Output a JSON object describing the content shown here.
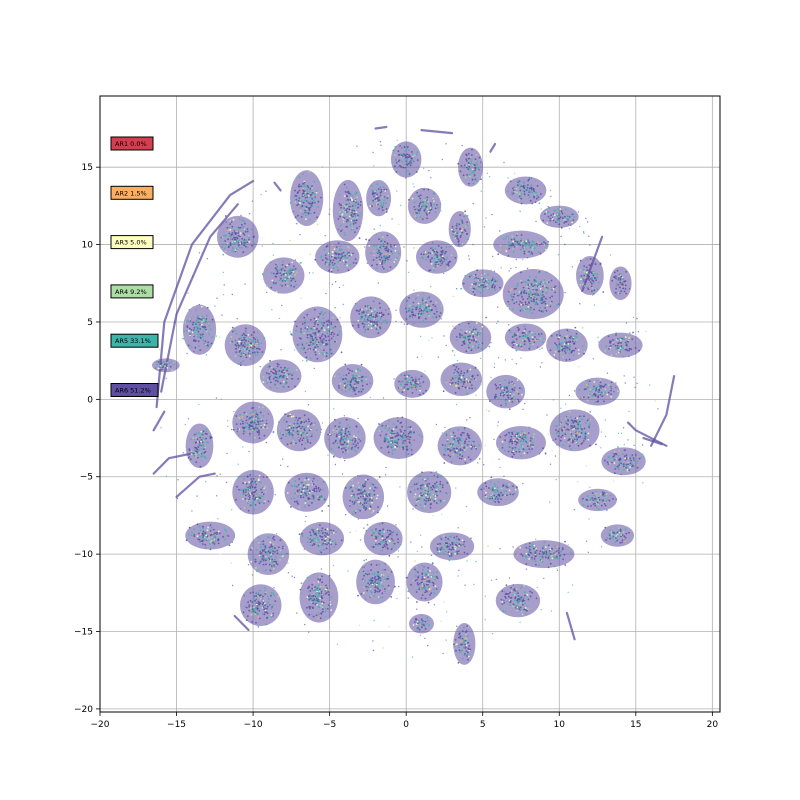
{
  "chart_data": {
    "type": "scatter",
    "title": "",
    "xlabel": "",
    "ylabel": "",
    "xlim": [
      -20,
      20.5
    ],
    "ylim": [
      -20.2,
      19.6
    ],
    "grid": true,
    "legend_placement": "upper-left",
    "xticks": [
      -20,
      -15,
      -10,
      -5,
      0,
      5,
      10,
      15,
      20
    ],
    "yticks": [
      -20,
      -15,
      -10,
      -5,
      0,
      5,
      10,
      15
    ],
    "point_color_primary": "#5e4fa2",
    "series": [
      {
        "name": "AR1",
        "label": "AR1 0.0%",
        "percent": 0.0,
        "color": "#d53e4f"
      },
      {
        "name": "AR2",
        "label": "AR2 1.5%",
        "percent": 1.5,
        "color": "#fdae61"
      },
      {
        "name": "AR3",
        "label": "AR3 5.0%",
        "percent": 5.0,
        "color": "#ffffbf"
      },
      {
        "name": "AR4",
        "label": "AR4 9.2%",
        "percent": 9.2,
        "color": "#abdda4"
      },
      {
        "name": "AR5",
        "label": "AR5 33.1%",
        "percent": 33.1,
        "color": "#3eb3a8"
      },
      {
        "name": "AR6",
        "label": "AR6 51.2%",
        "percent": 51.2,
        "color": "#5e4fa2"
      }
    ],
    "clusters": [
      {
        "x": 0.0,
        "y": 15.5,
        "rx": 1.1,
        "ry": 1.3
      },
      {
        "x": 4.2,
        "y": 15.0,
        "rx": 0.9,
        "ry": 1.4
      },
      {
        "x": -6.5,
        "y": 13.0,
        "rx": 1.2,
        "ry": 2.0
      },
      {
        "x": -3.8,
        "y": 12.2,
        "rx": 1.1,
        "ry": 2.2
      },
      {
        "x": -1.8,
        "y": 13.0,
        "rx": 0.9,
        "ry": 1.3
      },
      {
        "x": 1.2,
        "y": 12.5,
        "rx": 1.2,
        "ry": 1.3
      },
      {
        "x": 3.5,
        "y": 11.0,
        "rx": 0.8,
        "ry": 1.3
      },
      {
        "x": 7.8,
        "y": 13.5,
        "rx": 1.5,
        "ry": 1.0
      },
      {
        "x": 10.0,
        "y": 11.8,
        "rx": 1.4,
        "ry": 0.8
      },
      {
        "x": 7.5,
        "y": 10.0,
        "rx": 2.0,
        "ry": 1.0
      },
      {
        "x": -11.0,
        "y": 10.5,
        "rx": 1.5,
        "ry": 1.5
      },
      {
        "x": -8.0,
        "y": 8.0,
        "rx": 1.5,
        "ry": 1.3
      },
      {
        "x": -4.5,
        "y": 9.2,
        "rx": 1.6,
        "ry": 1.2
      },
      {
        "x": -1.5,
        "y": 9.5,
        "rx": 1.3,
        "ry": 1.5
      },
      {
        "x": 2.0,
        "y": 9.2,
        "rx": 1.5,
        "ry": 1.2
      },
      {
        "x": 5.0,
        "y": 7.5,
        "rx": 1.5,
        "ry": 1.0
      },
      {
        "x": 8.3,
        "y": 6.8,
        "rx": 2.2,
        "ry": 1.8
      },
      {
        "x": 12.0,
        "y": 8.0,
        "rx": 1.0,
        "ry": 1.4
      },
      {
        "x": 14.0,
        "y": 7.5,
        "rx": 0.8,
        "ry": 1.2
      },
      {
        "x": -5.8,
        "y": 4.2,
        "rx": 1.8,
        "ry": 2.0
      },
      {
        "x": -2.3,
        "y": 5.3,
        "rx": 1.5,
        "ry": 1.5
      },
      {
        "x": 1.0,
        "y": 5.8,
        "rx": 1.6,
        "ry": 1.3
      },
      {
        "x": 4.2,
        "y": 4.0,
        "rx": 1.5,
        "ry": 1.2
      },
      {
        "x": 7.8,
        "y": 4.0,
        "rx": 1.5,
        "ry": 1.0
      },
      {
        "x": 10.5,
        "y": 3.5,
        "rx": 1.5,
        "ry": 1.2
      },
      {
        "x": 14.0,
        "y": 3.5,
        "rx": 1.6,
        "ry": 0.9
      },
      {
        "x": -13.5,
        "y": 4.5,
        "rx": 1.2,
        "ry": 1.8
      },
      {
        "x": -10.5,
        "y": 3.5,
        "rx": 1.5,
        "ry": 1.5
      },
      {
        "x": -8.2,
        "y": 1.5,
        "rx": 1.5,
        "ry": 1.2
      },
      {
        "x": -3.5,
        "y": 1.2,
        "rx": 1.5,
        "ry": 1.2
      },
      {
        "x": 0.4,
        "y": 1.0,
        "rx": 1.3,
        "ry": 1.0
      },
      {
        "x": 3.6,
        "y": 1.3,
        "rx": 1.5,
        "ry": 1.2
      },
      {
        "x": 6.5,
        "y": 0.5,
        "rx": 1.4,
        "ry": 1.2
      },
      {
        "x": 12.5,
        "y": 0.5,
        "rx": 1.6,
        "ry": 1.0
      },
      {
        "x": -15.7,
        "y": 2.2,
        "rx": 1.0,
        "ry": 0.5
      },
      {
        "x": -13.5,
        "y": -3.0,
        "rx": 1.0,
        "ry": 1.6
      },
      {
        "x": -10.0,
        "y": -1.5,
        "rx": 1.5,
        "ry": 1.5
      },
      {
        "x": -7.0,
        "y": -2.0,
        "rx": 1.6,
        "ry": 1.5
      },
      {
        "x": -4.0,
        "y": -2.5,
        "rx": 1.5,
        "ry": 1.5
      },
      {
        "x": -0.5,
        "y": -2.5,
        "rx": 1.8,
        "ry": 1.5
      },
      {
        "x": 3.5,
        "y": -3.0,
        "rx": 1.6,
        "ry": 1.4
      },
      {
        "x": 7.5,
        "y": -2.8,
        "rx": 1.8,
        "ry": 1.2
      },
      {
        "x": 11.0,
        "y": -2.0,
        "rx": 1.8,
        "ry": 1.5
      },
      {
        "x": 14.2,
        "y": -4.0,
        "rx": 1.6,
        "ry": 1.0
      },
      {
        "x": -10.0,
        "y": -6.0,
        "rx": 1.5,
        "ry": 1.6
      },
      {
        "x": -6.5,
        "y": -6.0,
        "rx": 1.6,
        "ry": 1.4
      },
      {
        "x": -2.8,
        "y": -6.3,
        "rx": 1.5,
        "ry": 1.6
      },
      {
        "x": 1.5,
        "y": -6.0,
        "rx": 1.6,
        "ry": 1.5
      },
      {
        "x": 6.0,
        "y": -6.0,
        "rx": 1.5,
        "ry": 1.0
      },
      {
        "x": 12.5,
        "y": -6.5,
        "rx": 1.4,
        "ry": 0.8
      },
      {
        "x": -12.8,
        "y": -8.8,
        "rx": 1.8,
        "ry": 1.0
      },
      {
        "x": -9.0,
        "y": -10.0,
        "rx": 1.5,
        "ry": 1.5
      },
      {
        "x": -5.5,
        "y": -9.0,
        "rx": 1.6,
        "ry": 1.2
      },
      {
        "x": -1.5,
        "y": -9.0,
        "rx": 1.4,
        "ry": 1.2
      },
      {
        "x": 3.0,
        "y": -9.5,
        "rx": 1.6,
        "ry": 1.0
      },
      {
        "x": 9.0,
        "y": -10.0,
        "rx": 2.2,
        "ry": 1.0
      },
      {
        "x": 13.8,
        "y": -8.8,
        "rx": 1.2,
        "ry": 0.8
      },
      {
        "x": -9.5,
        "y": -13.3,
        "rx": 1.5,
        "ry": 1.5
      },
      {
        "x": -5.7,
        "y": -12.8,
        "rx": 1.4,
        "ry": 1.8
      },
      {
        "x": -2.0,
        "y": -11.8,
        "rx": 1.4,
        "ry": 1.6
      },
      {
        "x": 1.2,
        "y": -11.8,
        "rx": 1.3,
        "ry": 1.4
      },
      {
        "x": 7.3,
        "y": -13.0,
        "rx": 1.6,
        "ry": 1.2
      },
      {
        "x": 3.8,
        "y": -15.8,
        "rx": 0.8,
        "ry": 1.5
      },
      {
        "x": 1.0,
        "y": -14.5,
        "rx": 0.9,
        "ry": 0.7
      }
    ],
    "arcs": [
      [
        [
          -16.3,
          -0.5
        ],
        [
          -15.8,
          5.0
        ],
        [
          -14.0,
          10.0
        ],
        [
          -11.5,
          13.2
        ],
        [
          -10.0,
          14.1
        ]
      ],
      [
        [
          -16.0,
          0.5
        ],
        [
          -15.0,
          5.5
        ],
        [
          -12.8,
          10.5
        ],
        [
          -11.0,
          12.6
        ]
      ],
      [
        [
          -15.8,
          -0.8
        ],
        [
          -16.5,
          -2.0
        ]
      ],
      [
        [
          -16.5,
          -4.8
        ],
        [
          -15.5,
          -3.8
        ],
        [
          -14.0,
          -3.5
        ]
      ],
      [
        [
          -15.0,
          -6.3
        ],
        [
          -13.5,
          -5.0
        ],
        [
          -12.5,
          -4.8
        ]
      ],
      [
        [
          16.0,
          -3.0
        ],
        [
          17.0,
          -1.0
        ],
        [
          17.5,
          1.5
        ]
      ],
      [
        [
          14.5,
          -1.5
        ],
        [
          15.0,
          -2.0
        ],
        [
          17.0,
          -3.0
        ]
      ],
      [
        [
          15.5,
          -2.5
        ],
        [
          16.7,
          -2.9
        ]
      ],
      [
        [
          -11.2,
          -14.0
        ],
        [
          -10.3,
          -14.9
        ]
      ],
      [
        [
          11.5,
          7.0
        ],
        [
          12.8,
          10.5
        ]
      ],
      [
        [
          -2.0,
          17.5
        ],
        [
          -1.3,
          17.6
        ]
      ],
      [
        [
          1.0,
          17.4
        ],
        [
          3.0,
          17.2
        ]
      ],
      [
        [
          5.5,
          16.0
        ],
        [
          5.8,
          16.5
        ]
      ],
      [
        [
          -8.6,
          14.0
        ],
        [
          -8.2,
          13.5
        ]
      ],
      [
        [
          11.0,
          -15.5
        ],
        [
          10.5,
          -13.8
        ]
      ]
    ]
  }
}
